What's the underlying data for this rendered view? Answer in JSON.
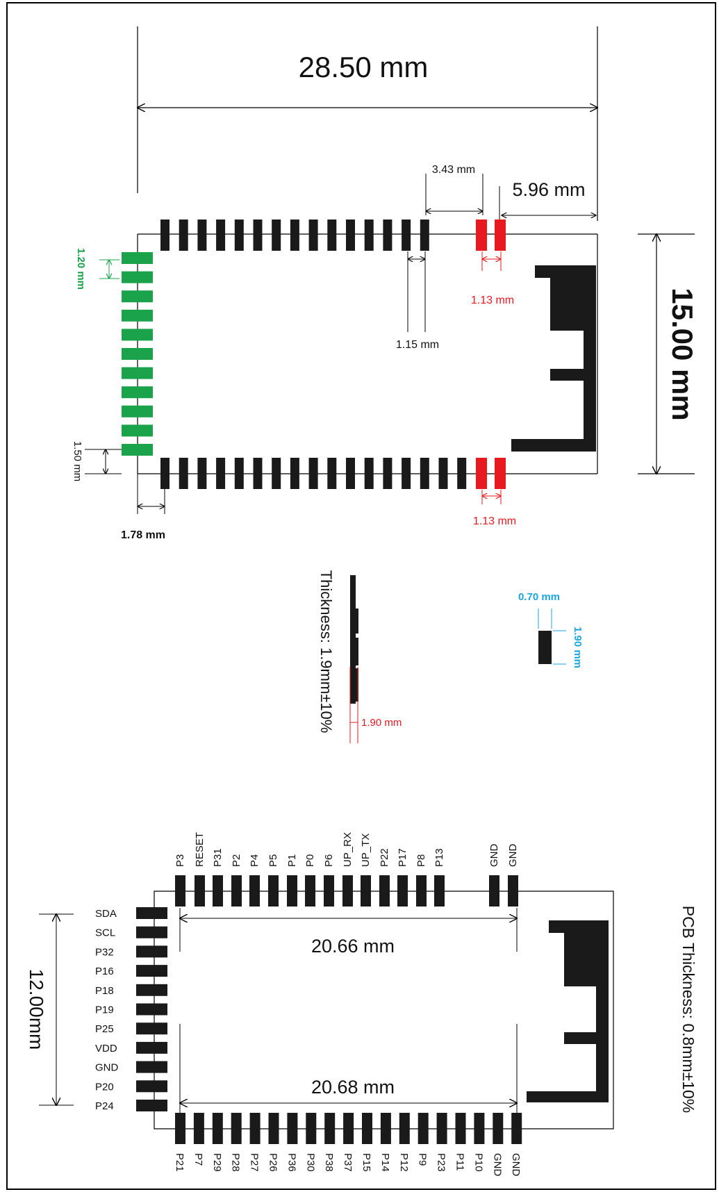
{
  "colors": {
    "pad": "#1a1a1a",
    "green": "#1aa34a",
    "red": "#e8191f",
    "cyan": "#1aa6e0",
    "line": "#000000"
  },
  "top_view": {
    "width_label": "28.50 mm",
    "height_label": "15.00 mm",
    "gap_label": "3.43 mm",
    "edge_label": "5.96 mm",
    "pad_pitch_label": "1.15 mm",
    "red_pitch_top_label": "1.13 mm",
    "red_pitch_bottom_label": "1.13 mm",
    "green_pitch_label": "1.20 mm",
    "left_offset_label": "1.50 mm",
    "bottom_offset_label": "1.78 mm"
  },
  "side_view": {
    "thickness_label": "Thickness: 1.9mm±10%",
    "height_label": "1.90 mm"
  },
  "pad_detail": {
    "width_label": "0.70 mm",
    "height_label": "1.90 mm"
  },
  "pinout": {
    "top_pins": [
      "P3",
      "RESET",
      "P31",
      "P2",
      "P4",
      "P5",
      "P1",
      "P0",
      "P6",
      "UP_RX",
      "UP_TX",
      "P22",
      "P17",
      "P8",
      "P13",
      "GND",
      "GND"
    ],
    "bottom_pins": [
      "P21",
      "P7",
      "P29",
      "P28",
      "P27",
      "P26",
      "P36",
      "P30",
      "P38",
      "P37",
      "P15",
      "P14",
      "P12",
      "P9",
      "P23",
      "P11",
      "P10",
      "GND",
      "GND"
    ],
    "left_pins": [
      "SDA",
      "SCL",
      "P32",
      "P16",
      "P18",
      "P19",
      "P25",
      "VDD",
      "GND",
      "P20",
      "P24"
    ],
    "top_span_label": "20.66 mm",
    "bottom_span_label": "20.68 mm",
    "height_label": "12.00mm",
    "pcb_thickness_label": "PCB Thickness: 0.8mm±10%"
  }
}
